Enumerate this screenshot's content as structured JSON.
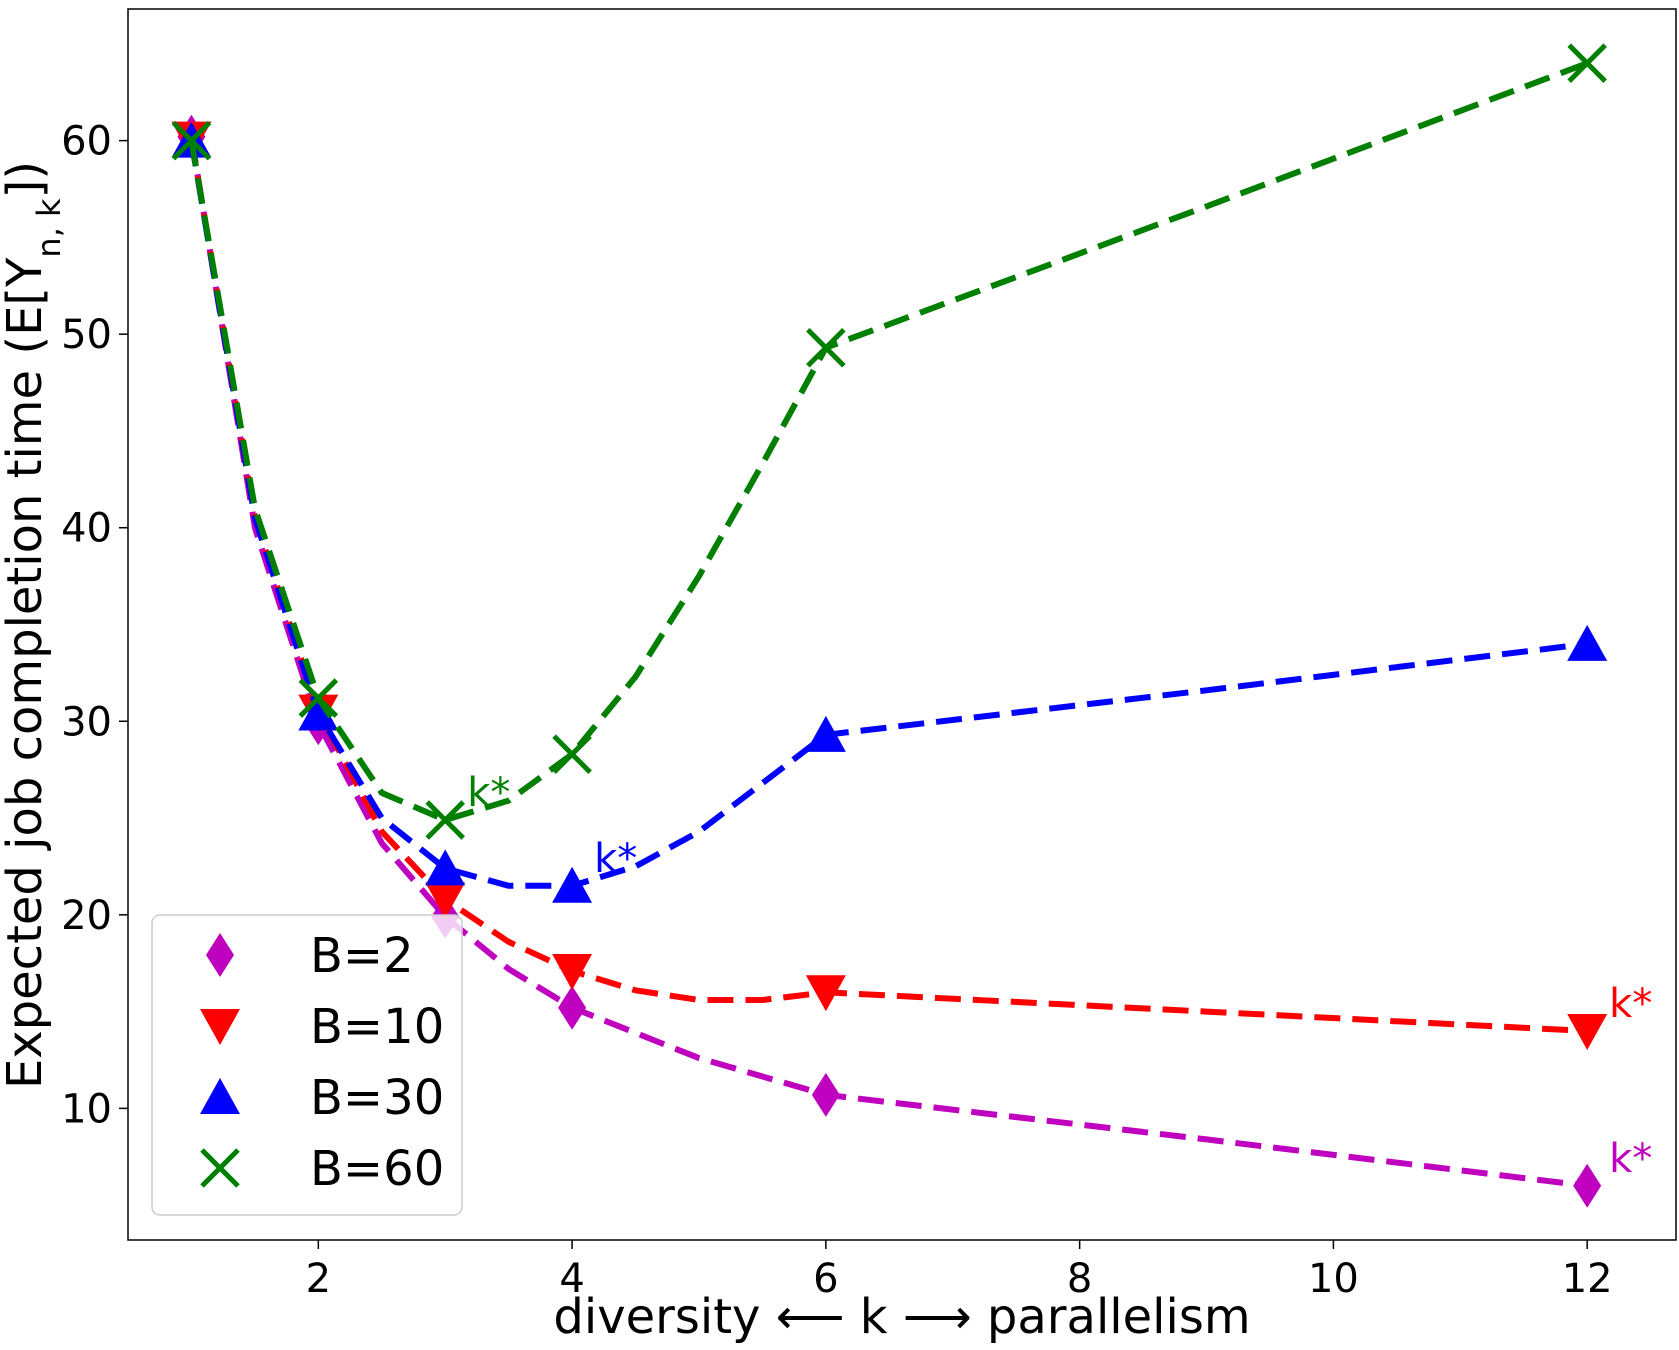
{
  "chart_data": {
    "type": "line",
    "title": "",
    "xlabel": "diversity ⟵ k ⟶ parallelism",
    "ylabel": "Expected job completion time (E[Y",
    "ylabel_sub": "n, k",
    "ylabel_end": "])",
    "xlim": [
      0.5,
      12.7
    ],
    "ylim": [
      3.2,
      66.8
    ],
    "xticks": [
      2,
      4,
      6,
      8,
      10,
      12
    ],
    "xtick_labels": [
      "2",
      "4",
      "6",
      "8",
      "10",
      "12"
    ],
    "yticks": [
      10,
      20,
      30,
      40,
      50,
      60
    ],
    "ytick_labels": [
      "10",
      "20",
      "30",
      "40",
      "50",
      "60"
    ],
    "legend_position": "lower-left",
    "series": [
      {
        "name": "B=2",
        "color": "#bf00bf",
        "marker": "diamond",
        "x": [
          1,
          2,
          3,
          4,
          6,
          12
        ],
        "values": [
          60.2,
          29.9,
          19.9,
          15.2,
          10.7,
          6.0
        ],
        "curve": [
          [
            1,
            60.2
          ],
          [
            1.5,
            40
          ],
          [
            2,
            29.9
          ],
          [
            2.5,
            23.7
          ],
          [
            3,
            19.9
          ],
          [
            3.5,
            17.2
          ],
          [
            4,
            15.2
          ],
          [
            5,
            12.6
          ],
          [
            6,
            10.7
          ],
          [
            9,
            8.4
          ],
          [
            12,
            6.0
          ]
        ],
        "kstar_label": "k*",
        "kstar_at": [
          12,
          6.0
        ]
      },
      {
        "name": "B=10",
        "color": "#ff0000",
        "marker": "triangle-down",
        "x": [
          1,
          2,
          3,
          4,
          6,
          12
        ],
        "values": [
          60.1,
          30.5,
          20.8,
          17.1,
          16.0,
          14.0
        ],
        "curve": [
          [
            1,
            60.1
          ],
          [
            1.5,
            40.5
          ],
          [
            2,
            30.5
          ],
          [
            2.5,
            24.3
          ],
          [
            3,
            20.8
          ],
          [
            3.5,
            18.6
          ],
          [
            4,
            17.1
          ],
          [
            4.5,
            16.1
          ],
          [
            5,
            15.6
          ],
          [
            5.5,
            15.6
          ],
          [
            6,
            16.0
          ],
          [
            9,
            15.0
          ],
          [
            12,
            14.0
          ]
        ],
        "kstar_label": "k*",
        "kstar_at": [
          12,
          14.0
        ]
      },
      {
        "name": "B=30",
        "color": "#0000ff",
        "marker": "triangle-up",
        "x": [
          1,
          2,
          3,
          4,
          6,
          12
        ],
        "values": [
          60.0,
          30.4,
          22.4,
          21.5,
          29.3,
          34.0
        ],
        "curve": [
          [
            1,
            60.0
          ],
          [
            1.5,
            40.5
          ],
          [
            2,
            30.4
          ],
          [
            2.5,
            25.0
          ],
          [
            3,
            22.4
          ],
          [
            3.5,
            21.5
          ],
          [
            4,
            21.5
          ],
          [
            4.5,
            22.5
          ],
          [
            5,
            24.3
          ],
          [
            5.5,
            26.8
          ],
          [
            6,
            29.3
          ],
          [
            9,
            31.6
          ],
          [
            12,
            34.0
          ]
        ],
        "kstar_label": "k*",
        "kstar_at": [
          4,
          21.5
        ]
      },
      {
        "name": "B=60",
        "color": "#007f00",
        "marker": "x",
        "x": [
          1,
          2,
          3,
          4,
          6,
          12
        ],
        "values": [
          60.0,
          31.2,
          24.9,
          28.3,
          49.3,
          64.0
        ],
        "curve": [
          [
            1,
            60.0
          ],
          [
            1.5,
            41.0
          ],
          [
            2,
            31.2
          ],
          [
            2.5,
            26.3
          ],
          [
            3,
            24.9
          ],
          [
            3.5,
            25.9
          ],
          [
            4,
            28.3
          ],
          [
            4.5,
            32.3
          ],
          [
            5,
            37.5
          ],
          [
            5.5,
            43.3
          ],
          [
            6,
            49.3
          ],
          [
            9,
            56.6
          ],
          [
            12,
            64.0
          ]
        ],
        "kstar_label": "k*",
        "kstar_at": [
          3,
          24.9
        ]
      }
    ]
  }
}
